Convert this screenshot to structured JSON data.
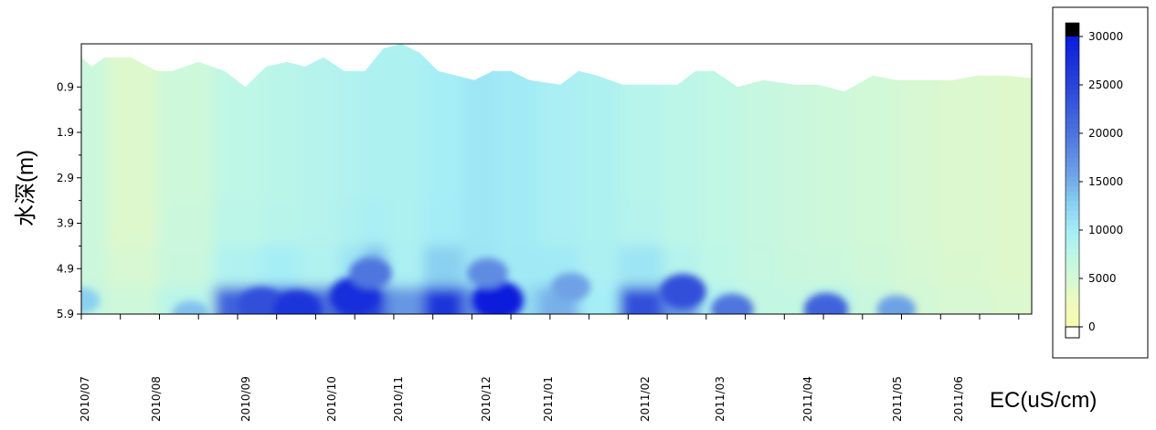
{
  "chart_data": {
    "type": "heatmap",
    "ylabel": "水深(m)",
    "colorbar_label": "EC(uS/cm)",
    "x_tick_labels": [
      "2010/07",
      "2010/08",
      "2010/09",
      "2010/10",
      "2010/11",
      "2010/12",
      "2011/01",
      "2011/02",
      "2011/03",
      "2011/04",
      "2011/05",
      "2011/06"
    ],
    "y_tick_labels": [
      "0.9",
      "1.9",
      "2.9",
      "3.9",
      "4.9",
      "5.9"
    ],
    "y_ticks": [
      0.9,
      1.9,
      2.9,
      3.9,
      4.9,
      5.9
    ],
    "ylim": [
      -0.05,
      5.9
    ],
    "colorbar": {
      "labels": [
        "30000",
        "25000",
        "20000",
        "15000",
        "10000",
        "5000",
        "0"
      ],
      "values": [
        30000,
        25000,
        20000,
        15000,
        10000,
        5000,
        0
      ],
      "colors": [
        "#0000ff",
        "#2a4de0",
        "#4a74d8",
        "#74a6e6",
        "#a6e4f4",
        "#cdf7e2",
        "#f4f9b4",
        "#ffffff"
      ],
      "max_color": "#000000"
    },
    "surface_depth": {
      "x": [
        "2010-07-01",
        "2010-07-05",
        "2010-07-10",
        "2010-07-20",
        "2010-07-30",
        "2010-08-05",
        "2010-08-15",
        "2010-08-25",
        "2010-09-02",
        "2010-09-10",
        "2010-09-18",
        "2010-09-25",
        "2010-10-02",
        "2010-10-10",
        "2010-10-18",
        "2010-10-25",
        "2010-11-01",
        "2010-11-08",
        "2010-11-15",
        "2010-11-22",
        "2010-11-29",
        "2010-12-06",
        "2010-12-13",
        "2010-12-20",
        "2011-01-01",
        "2011-01-08",
        "2011-01-15",
        "2011-01-25",
        "2011-02-05",
        "2011-02-15",
        "2011-02-22",
        "2011-03-01",
        "2011-03-10",
        "2011-03-20",
        "2011-04-01",
        "2011-04-10",
        "2011-04-20",
        "2011-05-01",
        "2011-05-10",
        "2011-05-20",
        "2011-06-01",
        "2011-06-10",
        "2011-06-20",
        "2011-06-30"
      ],
      "depth": [
        0.25,
        0.45,
        0.25,
        0.25,
        0.55,
        0.55,
        0.35,
        0.55,
        0.9,
        0.45,
        0.35,
        0.45,
        0.25,
        0.55,
        0.55,
        0.05,
        -0.05,
        0.15,
        0.55,
        0.65,
        0.75,
        0.55,
        0.55,
        0.75,
        0.85,
        0.55,
        0.65,
        0.85,
        0.85,
        0.85,
        0.55,
        0.55,
        0.9,
        0.75,
        0.85,
        0.85,
        1.0,
        0.65,
        0.75,
        0.75,
        0.75,
        0.65,
        0.65,
        0.7
      ]
    },
    "values": {
      "x": [
        "2010-07-01",
        "2010-07-20",
        "2010-08-10",
        "2010-09-01",
        "2010-09-15",
        "2010-10-01",
        "2010-10-15",
        "2010-10-20",
        "2010-11-01",
        "2010-11-18",
        "2010-12-01",
        "2010-12-15",
        "2011-01-01",
        "2011-01-15",
        "2011-02-01",
        "2011-02-18",
        "2011-03-01",
        "2011-03-20",
        "2011-04-01",
        "2011-04-15",
        "2011-05-01",
        "2011-05-20",
        "2011-06-01",
        "2011-06-30"
      ],
      "depth": [
        0.9,
        1.9,
        2.9,
        3.9,
        4.9,
        5.9
      ],
      "grid": [
        [
          6200,
          6200,
          6200,
          6200,
          6300,
          7000
        ],
        [
          4500,
          4500,
          4500,
          4500,
          5000,
          6000
        ],
        [
          6000,
          6000,
          6000,
          6200,
          6500,
          8000
        ],
        [
          7500,
          7500,
          7500,
          7800,
          9000,
          22000
        ],
        [
          8000,
          8000,
          8000,
          8200,
          10000,
          24000
        ],
        [
          8500,
          8500,
          8500,
          8500,
          9000,
          21000
        ],
        [
          9000,
          9000,
          9000,
          9200,
          11000,
          25000
        ],
        [
          9200,
          9200,
          9200,
          9800,
          14000,
          25000
        ],
        [
          9200,
          9200,
          9200,
          9200,
          9500,
          17000
        ],
        [
          10000,
          10000,
          10000,
          10200,
          13000,
          27000
        ],
        [
          10800,
          10800,
          10800,
          10800,
          11000,
          18000
        ],
        [
          10400,
          10400,
          10400,
          10400,
          10500,
          12000
        ],
        [
          9600,
          9600,
          9600,
          9600,
          10500,
          15000
        ],
        [
          9200,
          9200,
          9200,
          9200,
          9400,
          10000
        ],
        [
          8400,
          8400,
          8400,
          8500,
          11000,
          24000
        ],
        [
          7800,
          7800,
          7800,
          7800,
          8500,
          17000
        ],
        [
          7400,
          7400,
          7400,
          7400,
          7500,
          9000
        ],
        [
          6800,
          6800,
          6800,
          6800,
          6900,
          7200
        ],
        [
          6400,
          6400,
          6400,
          6400,
          6500,
          7000
        ],
        [
          6000,
          6000,
          6000,
          6000,
          6200,
          8000
        ],
        [
          5600,
          5600,
          5600,
          5600,
          5800,
          6500
        ],
        [
          5000,
          5000,
          5000,
          5000,
          5100,
          5500
        ],
        [
          4600,
          4600,
          4600,
          4600,
          4700,
          5000
        ],
        [
          4400,
          4400,
          4400,
          4400,
          4400,
          4600
        ]
      ]
    },
    "hotspots": [
      {
        "x": "2010-09-08",
        "depth": 5.7,
        "value": 24000
      },
      {
        "x": "2010-09-22",
        "depth": 5.8,
        "value": 27000
      },
      {
        "x": "2010-10-14",
        "depth": 5.5,
        "value": 28000
      },
      {
        "x": "2010-10-20",
        "depth": 5.0,
        "value": 20000
      },
      {
        "x": "2010-12-08",
        "depth": 5.6,
        "value": 30000
      },
      {
        "x": "2010-12-04",
        "depth": 5.0,
        "value": 18000
      },
      {
        "x": "2011-01-05",
        "depth": 5.3,
        "value": 16000
      },
      {
        "x": "2011-02-17",
        "depth": 5.4,
        "value": 24000
      },
      {
        "x": "2011-03-08",
        "depth": 5.8,
        "value": 20000
      },
      {
        "x": "2011-04-13",
        "depth": 5.8,
        "value": 22000
      },
      {
        "x": "2011-05-10",
        "depth": 5.8,
        "value": 16000
      },
      {
        "x": "2010-08-12",
        "depth": 5.9,
        "value": 14000
      },
      {
        "x": "2010-07-01",
        "depth": 5.6,
        "value": 13000
      }
    ]
  }
}
